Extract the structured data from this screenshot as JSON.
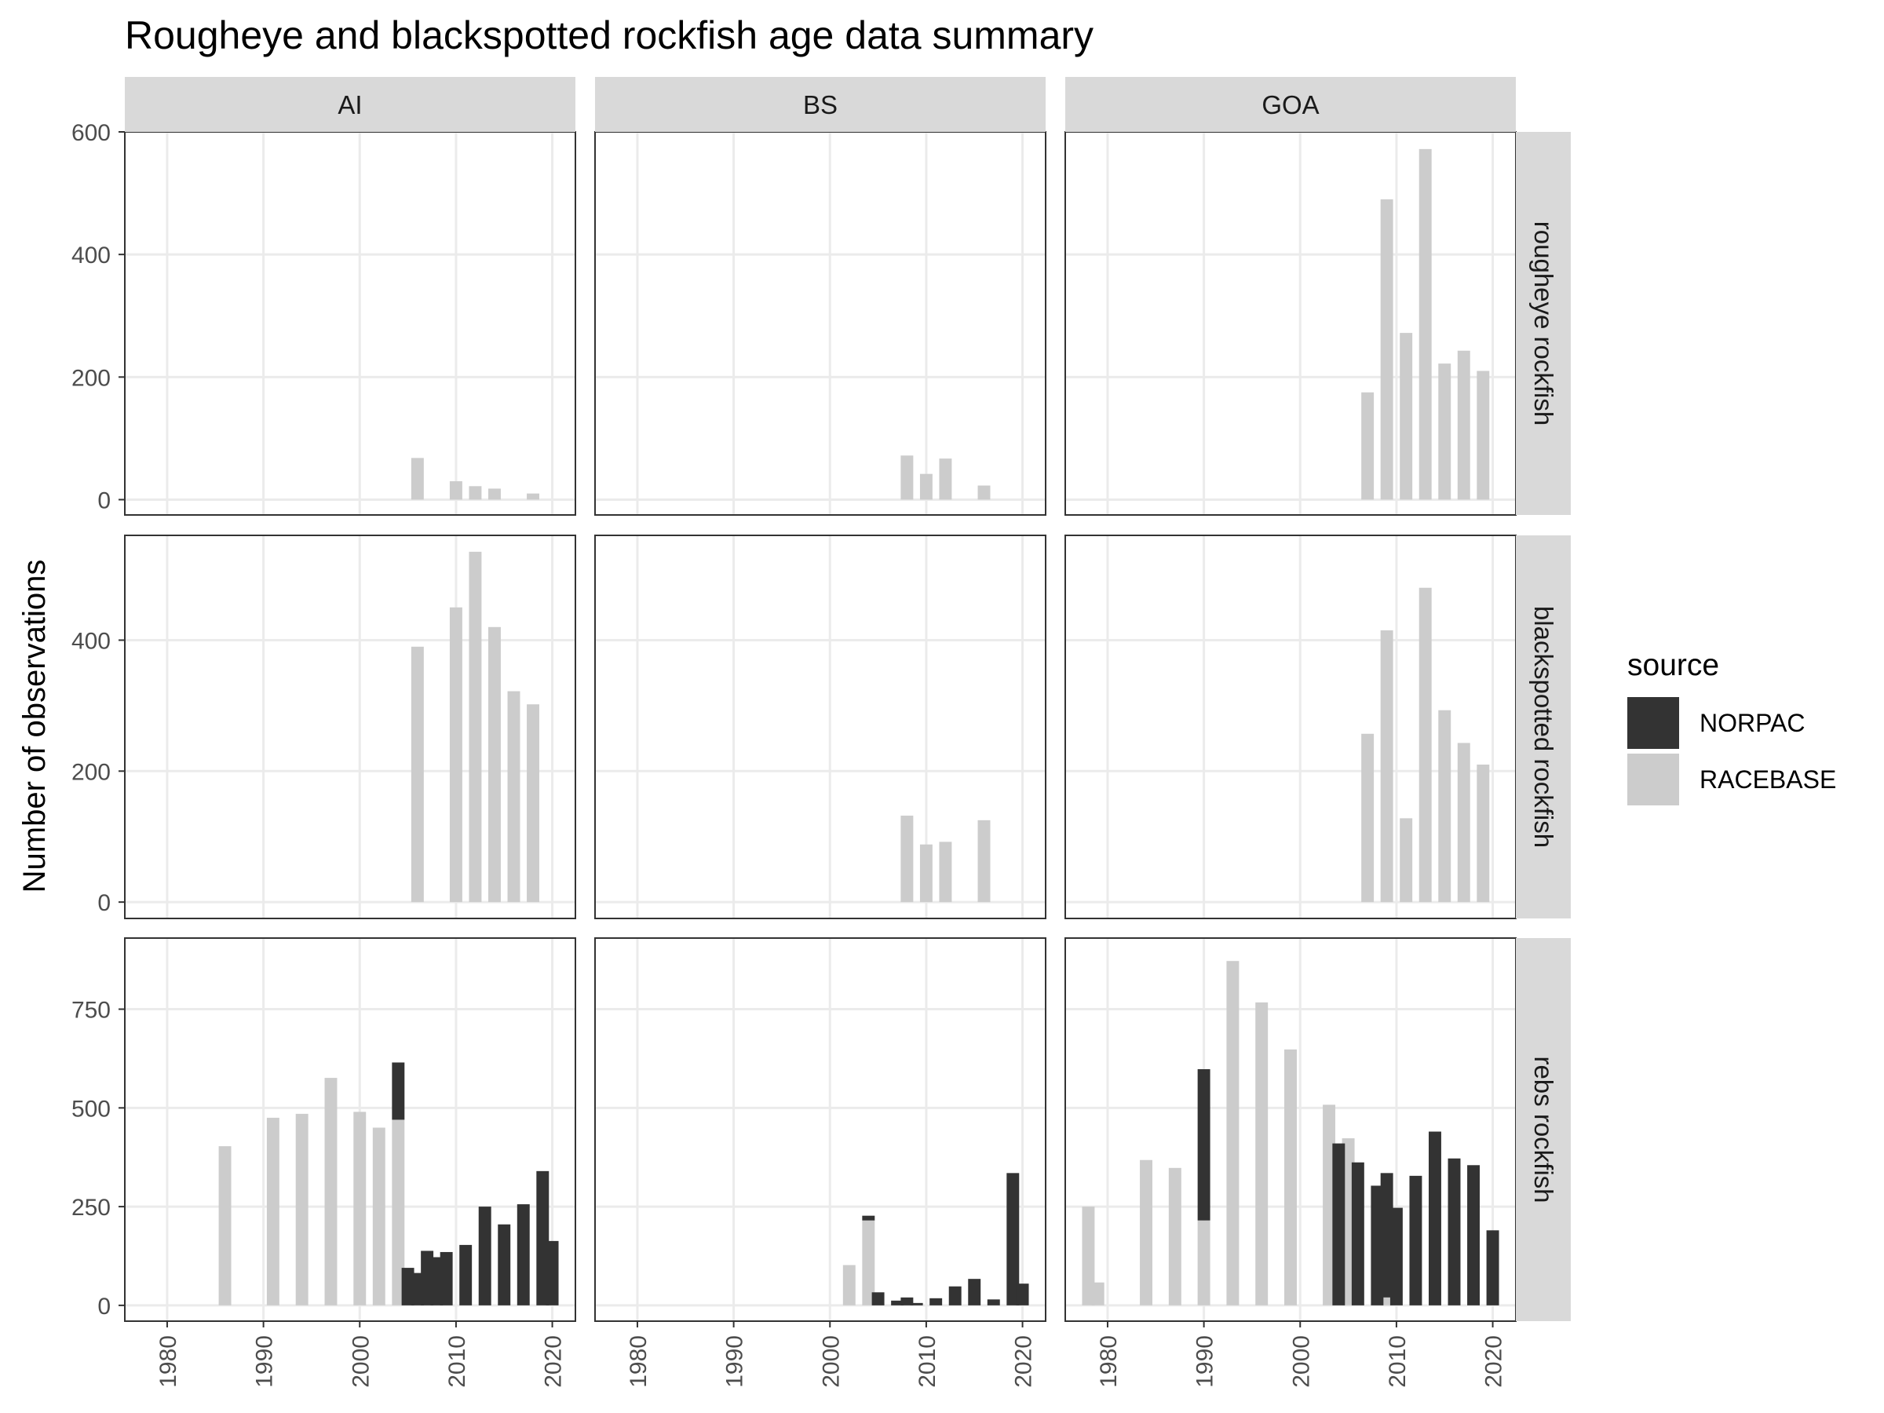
{
  "chart_data": {
    "type": "bar",
    "stacked": true,
    "title": "Rougheye and blackspotted rockfish age data summary",
    "xlabel": "",
    "ylabel": "Number of observations",
    "xlim": [
      1975.6,
      2022.4
    ],
    "x_ticks": [
      "1980",
      "1990",
      "2000",
      "2010",
      "2020"
    ],
    "grid": true,
    "facet_columns": [
      "AI",
      "BS",
      "GOA"
    ],
    "facet_rows": [
      {
        "label": "rougheye rockfish",
        "ylim": [
          -25,
          600
        ],
        "y_ticks": [
          0,
          200,
          400,
          600
        ]
      },
      {
        "label": "blackspotted rockfish",
        "ylim": [
          -25,
          560
        ],
        "y_ticks": [
          0,
          200,
          400
        ]
      },
      {
        "label": "rebs rockfish",
        "ylim": [
          -40,
          930
        ],
        "y_ticks": [
          0,
          250,
          500,
          750
        ]
      }
    ],
    "legend": {
      "title": "source",
      "position": "right",
      "entries": [
        {
          "name": "NORPAC",
          "color": "#333333"
        },
        {
          "name": "RACEBASE",
          "color": "#cccccc"
        }
      ]
    },
    "panels": [
      {
        "row": 0,
        "col": 0,
        "series": [
          {
            "name": "RACEBASE",
            "x": [
              2006,
              2010,
              2012,
              2014,
              2018
            ],
            "values": [
              68,
              30,
              22,
              18,
              10
            ]
          }
        ]
      },
      {
        "row": 0,
        "col": 1,
        "series": [
          {
            "name": "RACEBASE",
            "x": [
              2008,
              2010,
              2012,
              2016
            ],
            "values": [
              72,
              42,
              67,
              23
            ]
          }
        ]
      },
      {
        "row": 0,
        "col": 2,
        "series": [
          {
            "name": "RACEBASE",
            "x": [
              2007,
              2009,
              2011,
              2013,
              2015,
              2017,
              2019
            ],
            "values": [
              175,
              490,
              272,
              572,
              222,
              243,
              210
            ]
          }
        ]
      },
      {
        "row": 1,
        "col": 0,
        "series": [
          {
            "name": "RACEBASE",
            "x": [
              2006,
              2010,
              2012,
              2014,
              2016,
              2018
            ],
            "values": [
              390,
              450,
              535,
              420,
              322,
              302
            ]
          }
        ]
      },
      {
        "row": 1,
        "col": 1,
        "series": [
          {
            "name": "RACEBASE",
            "x": [
              2008,
              2010,
              2012,
              2016
            ],
            "values": [
              132,
              88,
              92,
              125
            ]
          }
        ]
      },
      {
        "row": 1,
        "col": 2,
        "series": [
          {
            "name": "RACEBASE",
            "x": [
              2007,
              2009,
              2011,
              2013,
              2015,
              2017,
              2019
            ],
            "values": [
              257,
              415,
              128,
              480,
              293,
              243,
              210
            ]
          }
        ]
      },
      {
        "row": 2,
        "col": 0,
        "series": [
          {
            "name": "RACEBASE",
            "x": [
              1986,
              1991,
              1994,
              1997,
              2000,
              2002,
              2004
            ],
            "values": [
              403,
              475,
              485,
              576,
              490,
              450,
              470
            ]
          },
          {
            "name": "NORPAC",
            "x": [
              2004,
              2005,
              2006,
              2007,
              2008,
              2009,
              2011,
              2013,
              2015,
              2017,
              2019,
              2020
            ],
            "values": [
              145,
              95,
              82,
              138,
              122,
              135,
              153,
              250,
              205,
              256,
              340,
              163
            ]
          }
        ]
      },
      {
        "row": 2,
        "col": 1,
        "series": [
          {
            "name": "RACEBASE",
            "x": [
              2002,
              2004
            ],
            "values": [
              102,
              215
            ]
          },
          {
            "name": "NORPAC",
            "x": [
              2004,
              2005,
              2007,
              2008,
              2009,
              2011,
              2013,
              2015,
              2017,
              2019,
              2020
            ],
            "values": [
              12,
              33,
              12,
              20,
              6,
              18,
              48,
              67,
              15,
              335,
              55
            ]
          }
        ]
      },
      {
        "row": 2,
        "col": 2,
        "series": [
          {
            "name": "RACEBASE",
            "x": [
              1978,
              1979,
              1984,
              1987,
              1990,
              1993,
              1996,
              1999,
              2003,
              2005,
              2009
            ],
            "values": [
              250,
              58,
              368,
              348,
              215,
              872,
              767,
              648,
              508,
              423,
              20
            ]
          },
          {
            "name": "NORPAC",
            "x": [
              1990,
              2004,
              2006,
              2008,
              2009,
              2010,
              2012,
              2014,
              2016,
              2018,
              2020
            ],
            "values": [
              383,
              410,
              362,
              303,
              315,
              247,
              328,
              440,
              372,
              355,
              190
            ]
          }
        ]
      }
    ]
  }
}
